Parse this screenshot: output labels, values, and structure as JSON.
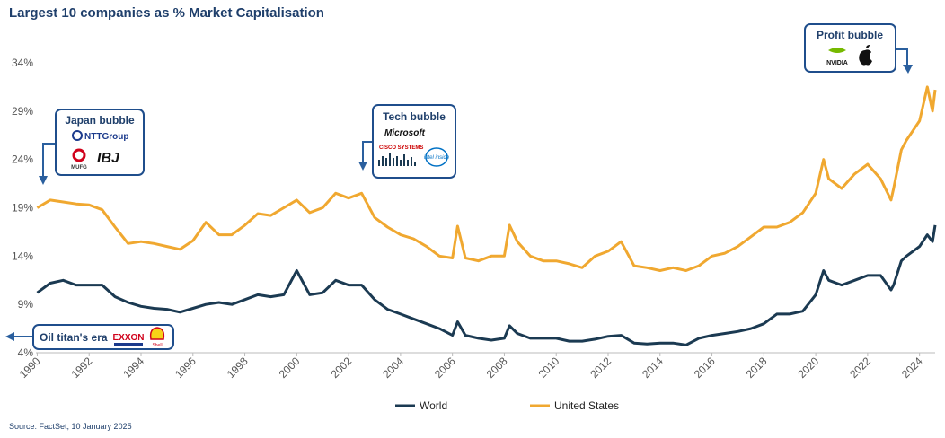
{
  "chart_data": {
    "type": "line",
    "title": "Largest 10 companies as % Market Capitalisation",
    "source": "Source: FactSet, 10 January 2025",
    "x": [
      1990.0,
      1990.5,
      1991.0,
      1991.5,
      1992.0,
      1992.5,
      1993.0,
      1993.5,
      1994.0,
      1994.5,
      1995.0,
      1995.5,
      1996.0,
      1996.5,
      1997.0,
      1997.5,
      1998.0,
      1998.5,
      1999.0,
      1999.5,
      2000.0,
      2000.5,
      2001.0,
      2001.5,
      2002.0,
      2002.5,
      2003.0,
      2003.5,
      2004.0,
      2004.5,
      2005.0,
      2005.5,
      2006.0,
      2006.2,
      2006.5,
      2007.0,
      2007.5,
      2008.0,
      2008.2,
      2008.5,
      2009.0,
      2009.5,
      2010.0,
      2010.5,
      2011.0,
      2011.5,
      2012.0,
      2012.5,
      2013.0,
      2013.5,
      2014.0,
      2014.5,
      2015.0,
      2015.5,
      2016.0,
      2016.5,
      2017.0,
      2017.5,
      2018.0,
      2018.5,
      2019.0,
      2019.5,
      2020.0,
      2020.3,
      2020.5,
      2021.0,
      2021.5,
      2022.0,
      2022.5,
      2022.9,
      2023.0,
      2023.3,
      2023.5,
      2024.0,
      2024.3,
      2024.5,
      2024.6
    ],
    "series": [
      {
        "name": "World",
        "color": "#1b3a52",
        "values": [
          10.2,
          11.2,
          11.5,
          11.0,
          11.0,
          11.0,
          9.8,
          9.2,
          8.8,
          8.6,
          8.5,
          8.2,
          8.6,
          9.0,
          9.2,
          9.0,
          9.5,
          10.0,
          9.8,
          10.0,
          12.5,
          10.0,
          10.2,
          11.5,
          11.0,
          11.0,
          9.5,
          8.5,
          8.0,
          7.5,
          7.0,
          6.5,
          5.8,
          7.2,
          5.8,
          5.5,
          5.3,
          5.5,
          6.8,
          6.0,
          5.5,
          5.5,
          5.5,
          5.2,
          5.2,
          5.4,
          5.7,
          5.8,
          5.0,
          4.9,
          5.0,
          5.0,
          4.8,
          5.5,
          5.8,
          6.0,
          6.2,
          6.5,
          7.0,
          8.0,
          8.0,
          8.3,
          10.0,
          12.5,
          11.5,
          11.0,
          11.5,
          12.0,
          12.0,
          10.5,
          11.0,
          13.5,
          14.0,
          15.0,
          16.2,
          15.5,
          17.2
        ]
      },
      {
        "name": "United States",
        "color": "#f0a830",
        "values": [
          19.0,
          19.8,
          19.6,
          19.4,
          19.3,
          18.8,
          17.0,
          15.3,
          15.5,
          15.3,
          15.0,
          14.7,
          15.6,
          17.5,
          16.2,
          16.2,
          17.2,
          18.4,
          18.2,
          19.0,
          19.8,
          18.5,
          19.0,
          20.5,
          20.0,
          20.5,
          18.0,
          17.0,
          16.2,
          15.8,
          15.0,
          14.0,
          13.8,
          17.1,
          13.8,
          13.5,
          14.0,
          14.0,
          17.2,
          15.5,
          14.0,
          13.5,
          13.5,
          13.2,
          12.8,
          14.0,
          14.5,
          15.5,
          13.0,
          12.8,
          12.5,
          12.8,
          12.5,
          13.0,
          14.0,
          14.3,
          15.0,
          16.0,
          17.0,
          17.0,
          17.5,
          18.5,
          20.5,
          24.0,
          22.0,
          21.0,
          22.5,
          23.5,
          22.0,
          19.8,
          21.0,
          25.0,
          26.0,
          28.0,
          31.5,
          29.0,
          31.2
        ]
      }
    ],
    "xlim": [
      1989.95,
      2024.6
    ],
    "xticks": [
      1990,
      1992,
      1994,
      1996,
      1998,
      2000,
      2002,
      2004,
      2006,
      2008,
      2010,
      2012,
      2014,
      2016,
      2018,
      2020,
      2022,
      2024
    ],
    "ylim": [
      4,
      34
    ],
    "yticks": [
      {
        "value": 4,
        "label": "4%"
      },
      {
        "value": 9,
        "label": "9%"
      },
      {
        "value": 14,
        "label": "14%"
      },
      {
        "value": 19,
        "label": "19%"
      },
      {
        "value": 24,
        "label": "24%"
      },
      {
        "value": 29,
        "label": "29%"
      },
      {
        "value": 34,
        "label": "34%"
      }
    ],
    "annotations": [
      {
        "title": "Japan bubble",
        "logos": [
          "NTTGroup",
          "MUFG",
          "IBJ"
        ]
      },
      {
        "title": "Tech bubble",
        "logos": [
          "Microsoft",
          "CISCO SYSTEMS",
          "intel inside"
        ]
      },
      {
        "title": "Profit bubble",
        "logos": [
          "NVIDIA"
        ]
      },
      {
        "title": "Oil titan's era",
        "logos": [
          "EXXON",
          "Shell"
        ]
      }
    ]
  }
}
